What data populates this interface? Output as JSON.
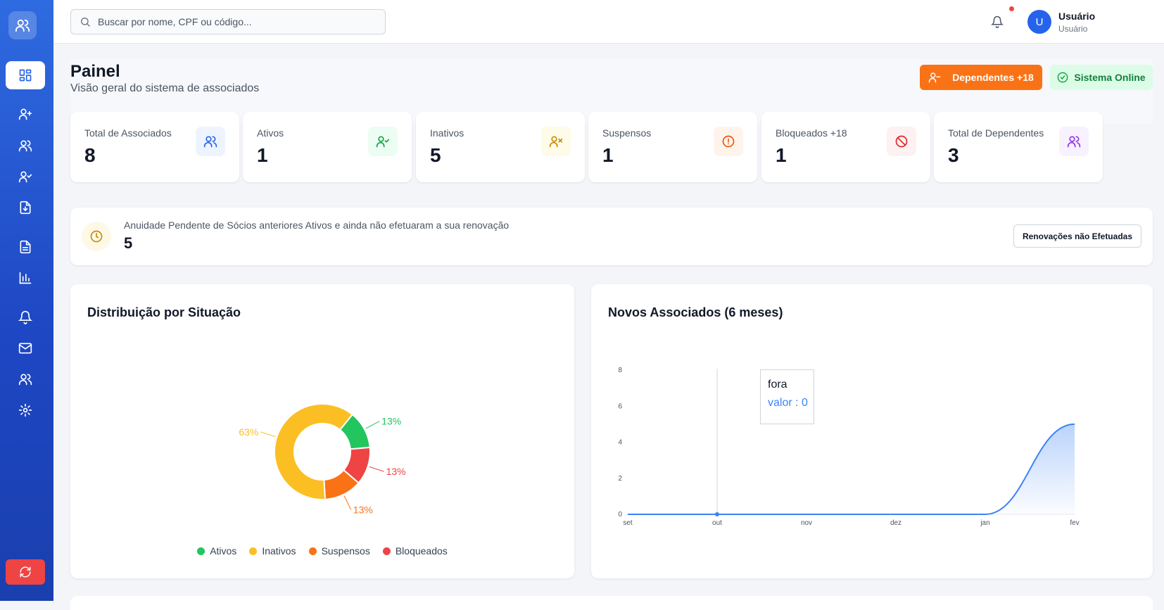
{
  "topbar": {
    "search_placeholder": "Buscar por nome, CPF ou código...",
    "user_name": "Usuário",
    "user_role": "Usuário",
    "avatar_initial": "U"
  },
  "page": {
    "title": "Painel",
    "subtitle": "Visão geral do sistema de associados",
    "dependents_button": "Dependentes +18",
    "status_badge": "Sistema Online"
  },
  "stats": [
    {
      "label": "Total de Associados",
      "value": "8",
      "icon": "users-icon",
      "color": "#2563eb",
      "bg": "#eef4ff"
    },
    {
      "label": "Ativos",
      "value": "1",
      "icon": "user-check-icon",
      "color": "#16a34a",
      "bg": "#ecfdf3"
    },
    {
      "label": "Inativos",
      "value": "5",
      "icon": "user-x-icon",
      "color": "#ca8a04",
      "bg": "#fefce8"
    },
    {
      "label": "Suspensos",
      "value": "1",
      "icon": "alert-circle-icon",
      "color": "#ea580c",
      "bg": "#fff4ec"
    },
    {
      "label": "Bloqueados +18",
      "value": "1",
      "icon": "ban-icon",
      "color": "#dc2626",
      "bg": "#fef1f1"
    },
    {
      "label": "Total de Dependentes",
      "value": "3",
      "icon": "users-icon",
      "color": "#9333ea",
      "bg": "#f8f1ff"
    }
  ],
  "renewal": {
    "text": "Anuidade Pendente de Sócios anteriores Ativos e ainda não efetuaram a sua renovação",
    "value": "5",
    "button": "Renovações não Efetuadas"
  },
  "colors": {
    "accent": "#f97316",
    "primary": "#2563eb",
    "sidebar": "#1e47c4"
  },
  "chart_data": [
    {
      "type": "pie",
      "title": "Distribuição por Situação",
      "categories": [
        "Ativos",
        "Inativos",
        "Suspensos",
        "Bloqueados"
      ],
      "values": [
        13,
        63,
        13,
        13
      ],
      "labels": [
        "13%",
        "63%",
        "13%",
        "13%"
      ],
      "colors": [
        "#22c55e",
        "#fbbf24",
        "#f97316",
        "#ef4444"
      ],
      "legend": "bottom"
    },
    {
      "type": "area",
      "title": "Novos Associados (6 meses)",
      "categories": [
        "set",
        "out",
        "nov",
        "dez",
        "jan",
        "fev"
      ],
      "series": [
        {
          "values": [
            0,
            0,
            0,
            0,
            0,
            5
          ]
        }
      ],
      "yticks": [
        "0",
        "2",
        "4",
        "6",
        "8"
      ],
      "ylim": [
        0,
        8
      ],
      "tooltip": {
        "title": "fora",
        "label": "valor : 0"
      }
    }
  ]
}
